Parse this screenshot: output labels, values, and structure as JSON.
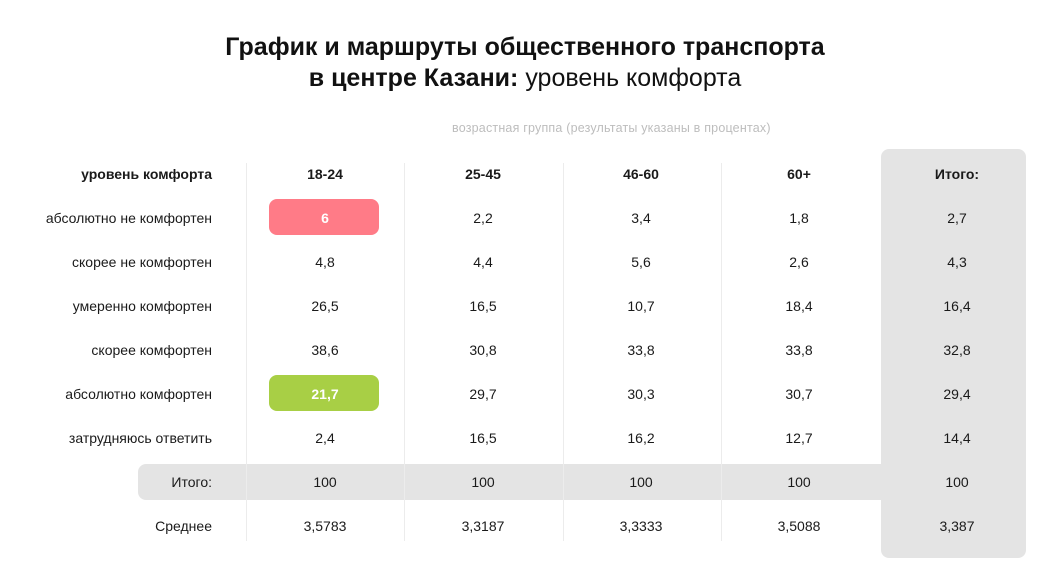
{
  "title_bold_line1": "График и маршруты общественного транспорта",
  "title_bold_line2": "в центре Казани:",
  "title_normal_line2": "уровень комфорта",
  "subtitle": "возрастная группа (результаты указаны в процентах)",
  "colors": {
    "highlight_red": "#ff7b87",
    "highlight_green": "#a8cf45",
    "total_background": "#e4e4e4"
  },
  "chart_data": {
    "type": "table",
    "corner_label": "уровень комфорта",
    "columns": [
      "18-24",
      "25-45",
      "46-60",
      "60+",
      "Итого:"
    ],
    "rows": [
      {
        "label": "абсолютно не комфортен",
        "values": [
          "6",
          "2,2",
          "3,4",
          "1,8",
          "2,7"
        ]
      },
      {
        "label": "скорее не комфортен",
        "values": [
          "4,8",
          "4,4",
          "5,6",
          "2,6",
          "4,3"
        ]
      },
      {
        "label": "умеренно комфортен",
        "values": [
          "26,5",
          "16,5",
          "10,7",
          "18,4",
          "16,4"
        ]
      },
      {
        "label": "скорее комфортен",
        "values": [
          "38,6",
          "30,8",
          "33,8",
          "33,8",
          "32,8"
        ]
      },
      {
        "label": "абсолютно комфортен",
        "values": [
          "21,7",
          "29,7",
          "30,3",
          "30,7",
          "29,4"
        ]
      },
      {
        "label": "затрудняюсь ответить",
        "values": [
          "2,4",
          "16,5",
          "16,2",
          "12,7",
          "14,4"
        ]
      },
      {
        "label": "Итого:",
        "values": [
          "100",
          "100",
          "100",
          "100",
          "100"
        ]
      },
      {
        "label": "Среднее",
        "values": [
          "3,5783",
          "3,3187",
          "3,3333",
          "3,5088",
          "3,387"
        ]
      }
    ]
  }
}
